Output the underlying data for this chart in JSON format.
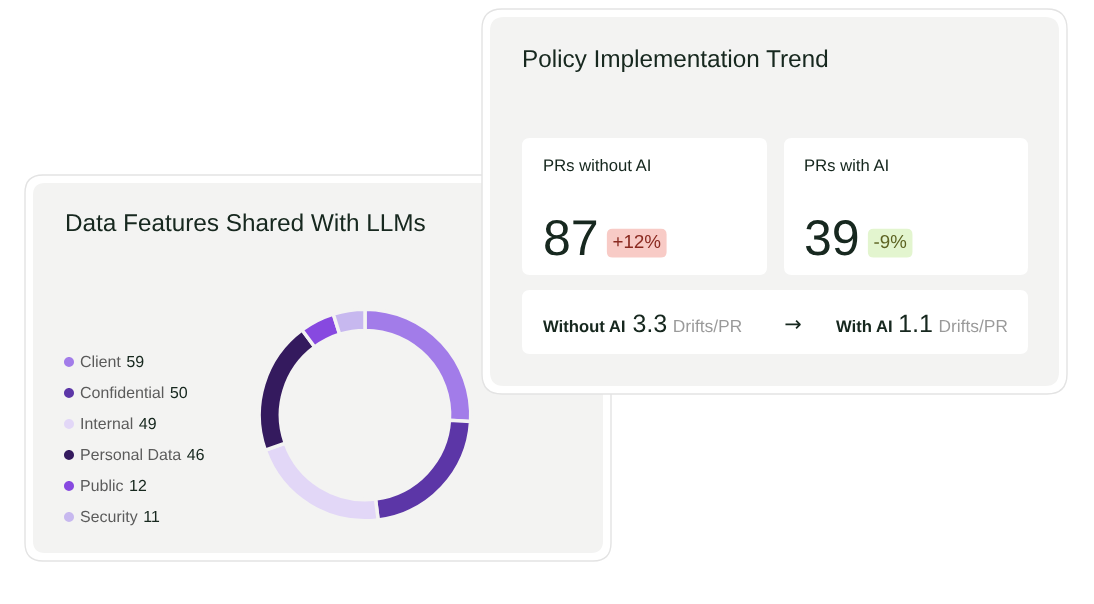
{
  "chart_data": [
    {
      "type": "other",
      "title": "Policy Implementation Trend",
      "annotations": [
        "PRs without AI",
        "87",
        "+12%",
        "PRs with AI",
        "39",
        "-9%",
        "Without AI",
        "3.3",
        "Drifts/PR",
        "→",
        "With AI",
        "1.1",
        "Drifts/PR"
      ]
    },
    {
      "type": "donut",
      "title": "Data Features Shared With LLMs",
      "categories": [
        "Client",
        "Confidential",
        "Internal",
        "Personal Data",
        "Public",
        "Security"
      ],
      "values": [
        59,
        50,
        49,
        46,
        12,
        11
      ],
      "colors": [
        "#a27ce9",
        "#5c36a7",
        "#e2d7f7",
        "#341a5e",
        "#8749e0",
        "#c7b8ef"
      ],
      "legend": "left",
      "data_labels": true
    }
  ]
}
